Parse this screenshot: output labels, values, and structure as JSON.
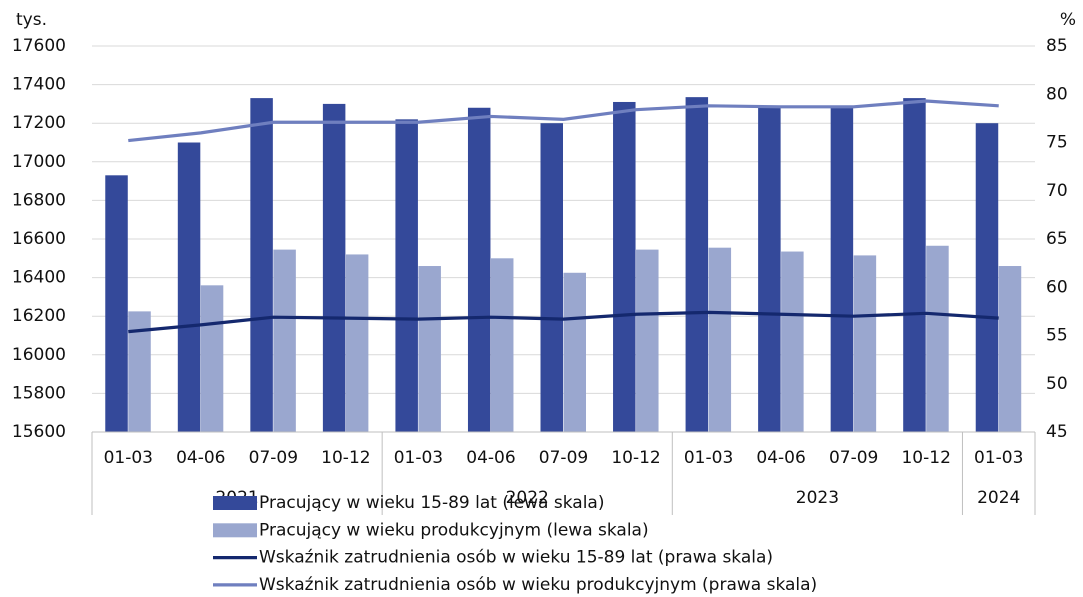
{
  "chart_data": {
    "type": "bar_line",
    "y_unit": "tys.",
    "y2_unit": "%",
    "categories": [
      "01-03",
      "04-06",
      "07-09",
      "10-12",
      "01-03",
      "04-06",
      "07-09",
      "10-12",
      "01-03",
      "04-06",
      "07-09",
      "10-12",
      "01-03"
    ],
    "category_groups": [
      {
        "label": "2021",
        "count": 4
      },
      {
        "label": "2022",
        "count": 4
      },
      {
        "label": "2023",
        "count": 4
      },
      {
        "label": "2024",
        "count": 1
      }
    ],
    "series": [
      {
        "name": "Pracujący w wieku 15-89 lat (lewa skala)",
        "kind": "bar",
        "color": "#34499a",
        "values": [
          16930,
          17100,
          17330,
          17300,
          17220,
          17280,
          17200,
          17310,
          17335,
          17290,
          17290,
          17330,
          17200
        ]
      },
      {
        "name": "Pracujący w wieku produkcyjnym (lewa skala)",
        "kind": "bar",
        "color": "#9aa7cf",
        "values": [
          16225,
          16360,
          16545,
          16520,
          16460,
          16500,
          16425,
          16545,
          16555,
          16535,
          16515,
          16565,
          16460
        ]
      },
      {
        "name": "Wskaźnik zatrudnienia osób w wieku 15-89 lat (prawa skala)",
        "kind": "line",
        "axis": "y2",
        "color": "#14286e",
        "values": [
          55.4,
          56.1,
          56.9,
          56.8,
          56.7,
          56.9,
          56.7,
          57.2,
          57.4,
          57.2,
          57.0,
          57.3,
          56.8
        ]
      },
      {
        "name": "Wskaźnik zatrudnienia osób w wieku produkcyjnym (prawa skala)",
        "kind": "line",
        "axis": "y2",
        "color": "#6f7fbf",
        "values": [
          75.2,
          76.0,
          77.1,
          77.1,
          77.1,
          77.7,
          77.4,
          78.4,
          78.8,
          78.7,
          78.7,
          79.3,
          78.8
        ]
      }
    ],
    "ylim": [
      15600,
      17600
    ],
    "yticks": [
      15600,
      15800,
      16000,
      16200,
      16400,
      16600,
      16800,
      17000,
      17200,
      17400,
      17600
    ],
    "y2lim": [
      45,
      85
    ],
    "y2ticks": [
      45,
      50,
      55,
      60,
      65,
      70,
      75,
      80,
      85
    ],
    "grid": true
  }
}
